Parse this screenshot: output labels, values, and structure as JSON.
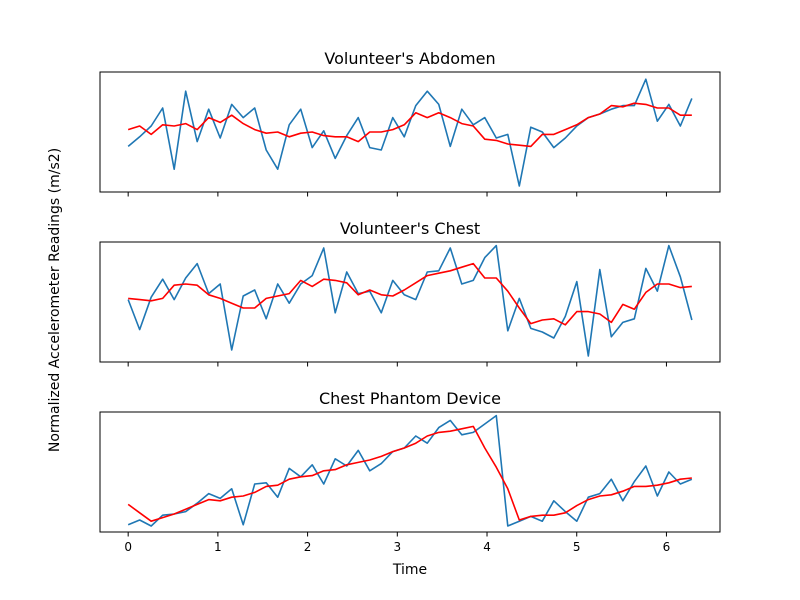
{
  "figure": {
    "ylabel": "Normalized Accelerometer Readings (m/s2)",
    "xlabel": "Time"
  },
  "chart_data": {
    "type": "line",
    "x": [
      0.0,
      0.1282,
      0.2565,
      0.3847,
      0.5129,
      0.6411,
      0.7694,
      0.8976,
      1.0258,
      1.1541,
      1.2823,
      1.4105,
      1.5387,
      1.667,
      1.7952,
      1.9234,
      2.0517,
      2.1799,
      2.3081,
      2.4363,
      2.5646,
      2.6928,
      2.821,
      2.9493,
      3.0775,
      3.2057,
      3.3339,
      3.4622,
      3.5904,
      3.7186,
      3.8468,
      3.9751,
      4.1033,
      4.2315,
      4.3598,
      4.488,
      4.6162,
      4.7444,
      4.8727,
      5.0009,
      5.1291,
      5.2574,
      5.3856,
      5.5138,
      5.642,
      5.7703,
      5.8985,
      6.0267,
      6.155,
      6.2832
    ],
    "xticks": [
      0,
      1,
      2,
      3,
      4,
      5,
      6
    ],
    "xlim": [
      -0.314,
      6.597
    ],
    "xlabel": "Time",
    "ylabel": "Normalized Accelerometer Readings (m/s2)",
    "raw_color": "#1f77b4",
    "smooth_color": "#ff0000",
    "panels": [
      {
        "title": "Volunteer's Abdomen",
        "ylim": [
          0.0,
          1.0
        ],
        "series": [
          {
            "values": [
              0.38,
              0.46,
              0.55,
              0.7,
              0.19,
              0.84,
              0.42,
              0.69,
              0.45,
              0.73,
              0.62,
              0.7,
              0.35,
              0.19,
              0.56,
              0.69,
              0.37,
              0.51,
              0.28,
              0.47,
              0.62,
              0.37,
              0.35,
              0.62,
              0.46,
              0.72,
              0.84,
              0.73,
              0.38,
              0.69,
              0.56,
              0.62,
              0.45,
              0.48,
              0.05,
              0.54,
              0.5,
              0.37,
              0.45,
              0.55,
              0.62,
              0.65,
              0.69,
              0.72,
              0.72,
              0.94,
              0.59,
              0.73,
              0.55,
              0.78
            ]
          },
          {
            "values": [
              0.52,
              0.55,
              0.48,
              0.56,
              0.55,
              0.57,
              0.52,
              0.62,
              0.58,
              0.64,
              0.57,
              0.52,
              0.49,
              0.5,
              0.46,
              0.49,
              0.5,
              0.47,
              0.46,
              0.46,
              0.42,
              0.5,
              0.5,
              0.52,
              0.56,
              0.66,
              0.62,
              0.66,
              0.62,
              0.57,
              0.55,
              0.44,
              0.43,
              0.4,
              0.39,
              0.38,
              0.48,
              0.48,
              0.52,
              0.56,
              0.62,
              0.65,
              0.72,
              0.71,
              0.74,
              0.73,
              0.7,
              0.7,
              0.64,
              0.64
            ]
          }
        ]
      },
      {
        "title": "Volunteer's Chest",
        "ylim": [
          0.0,
          1.0
        ],
        "series": [
          {
            "values": [
              0.52,
              0.27,
              0.54,
              0.69,
              0.52,
              0.7,
              0.82,
              0.57,
              0.65,
              0.1,
              0.55,
              0.6,
              0.36,
              0.65,
              0.49,
              0.65,
              0.72,
              0.95,
              0.41,
              0.75,
              0.57,
              0.59,
              0.41,
              0.68,
              0.56,
              0.52,
              0.75,
              0.76,
              0.95,
              0.65,
              0.68,
              0.87,
              0.97,
              0.26,
              0.53,
              0.28,
              0.25,
              0.2,
              0.38,
              0.67,
              0.05,
              0.77,
              0.21,
              0.33,
              0.36,
              0.78,
              0.59,
              0.97,
              0.71,
              0.35
            ]
          },
          {
            "values": [
              0.53,
              0.52,
              0.51,
              0.53,
              0.64,
              0.65,
              0.64,
              0.56,
              0.53,
              0.49,
              0.45,
              0.45,
              0.53,
              0.55,
              0.57,
              0.68,
              0.63,
              0.69,
              0.68,
              0.66,
              0.56,
              0.6,
              0.56,
              0.55,
              0.6,
              0.66,
              0.72,
              0.74,
              0.76,
              0.79,
              0.82,
              0.7,
              0.7,
              0.59,
              0.45,
              0.32,
              0.35,
              0.36,
              0.31,
              0.42,
              0.42,
              0.4,
              0.33,
              0.48,
              0.44,
              0.58,
              0.65,
              0.65,
              0.62,
              0.63
            ]
          }
        ]
      },
      {
        "title": "Chest Phantom Device",
        "ylim": [
          0.0,
          1.0
        ],
        "series": [
          {
            "values": [
              0.06,
              0.1,
              0.05,
              0.14,
              0.15,
              0.17,
              0.24,
              0.32,
              0.28,
              0.36,
              0.06,
              0.4,
              0.41,
              0.29,
              0.53,
              0.46,
              0.56,
              0.4,
              0.61,
              0.55,
              0.68,
              0.51,
              0.57,
              0.67,
              0.7,
              0.8,
              0.74,
              0.87,
              0.93,
              0.81,
              0.83,
              0.9,
              0.97,
              0.05,
              0.09,
              0.13,
              0.09,
              0.26,
              0.17,
              0.09,
              0.29,
              0.32,
              0.44,
              0.26,
              0.42,
              0.55,
              0.3,
              0.5,
              0.4,
              0.44
            ]
          },
          {
            "values": [
              0.23,
              0.16,
              0.09,
              0.12,
              0.15,
              0.19,
              0.23,
              0.27,
              0.26,
              0.29,
              0.3,
              0.33,
              0.38,
              0.39,
              0.44,
              0.46,
              0.47,
              0.51,
              0.52,
              0.56,
              0.58,
              0.6,
              0.63,
              0.67,
              0.7,
              0.74,
              0.8,
              0.83,
              0.84,
              0.86,
              0.88,
              0.7,
              0.54,
              0.36,
              0.1,
              0.13,
              0.14,
              0.14,
              0.16,
              0.22,
              0.27,
              0.3,
              0.31,
              0.34,
              0.38,
              0.38,
              0.39,
              0.41,
              0.44,
              0.45
            ]
          }
        ]
      }
    ]
  }
}
